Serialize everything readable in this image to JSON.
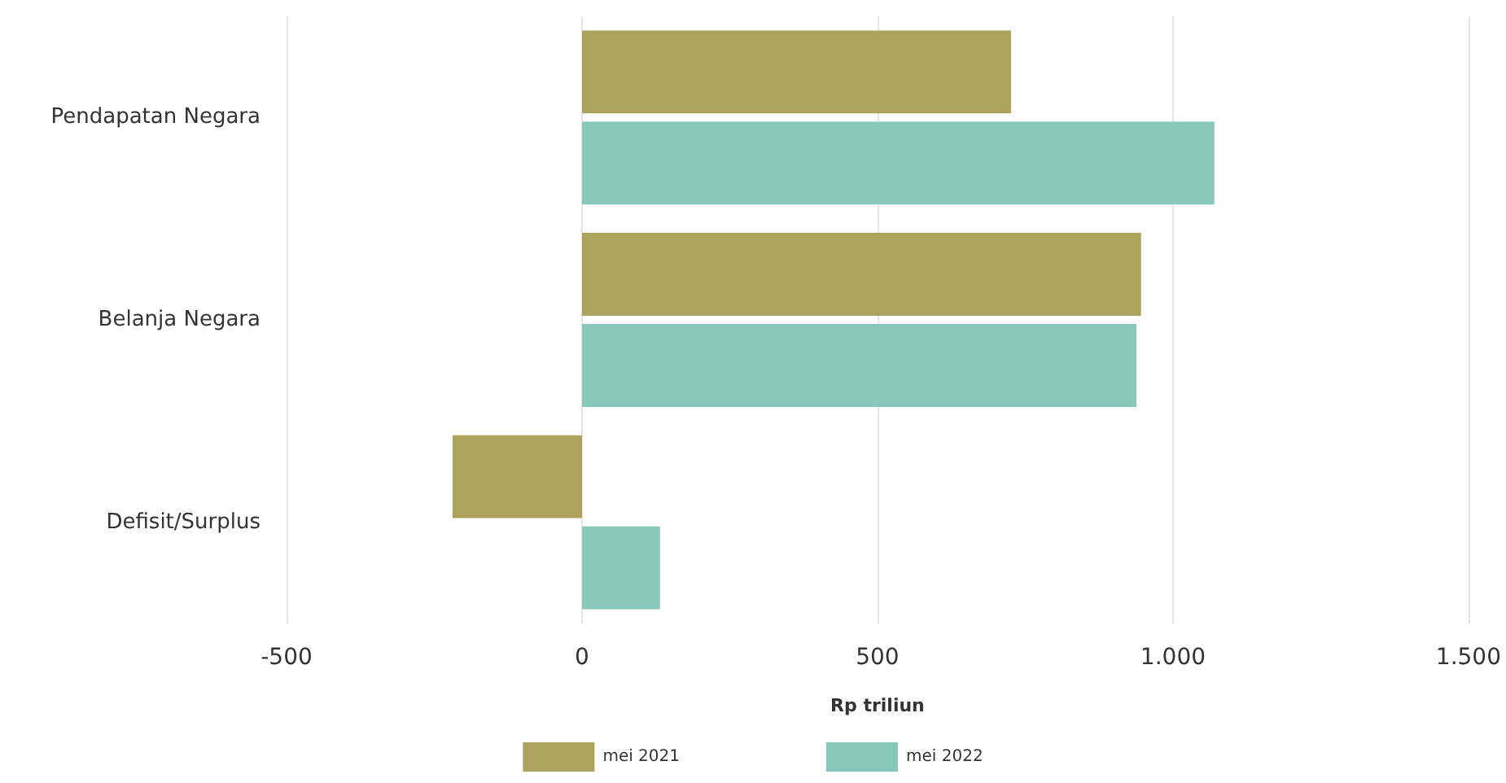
{
  "chart_data": {
    "type": "bar",
    "orientation": "horizontal",
    "xlabel": "Rp triliun",
    "categories": [
      "Pendapatan Negara",
      "Belanja Negara",
      "Defisit/Surplus"
    ],
    "series": [
      {
        "name": "mei 2021",
        "color": "#ada35c",
        "values": [
          726,
          946,
          -219
        ]
      },
      {
        "name": "mei 2022",
        "color": "#88c8bb",
        "values": [
          1070,
          938,
          132
        ]
      }
    ],
    "xlim": [
      -500,
      1500
    ],
    "xticks": [
      -500,
      0,
      500,
      {
        "value": 1000,
        "label": "1.000"
      },
      {
        "value": 1500,
        "label": "1.500"
      }
    ],
    "grid": "x",
    "legend": "bottom"
  }
}
